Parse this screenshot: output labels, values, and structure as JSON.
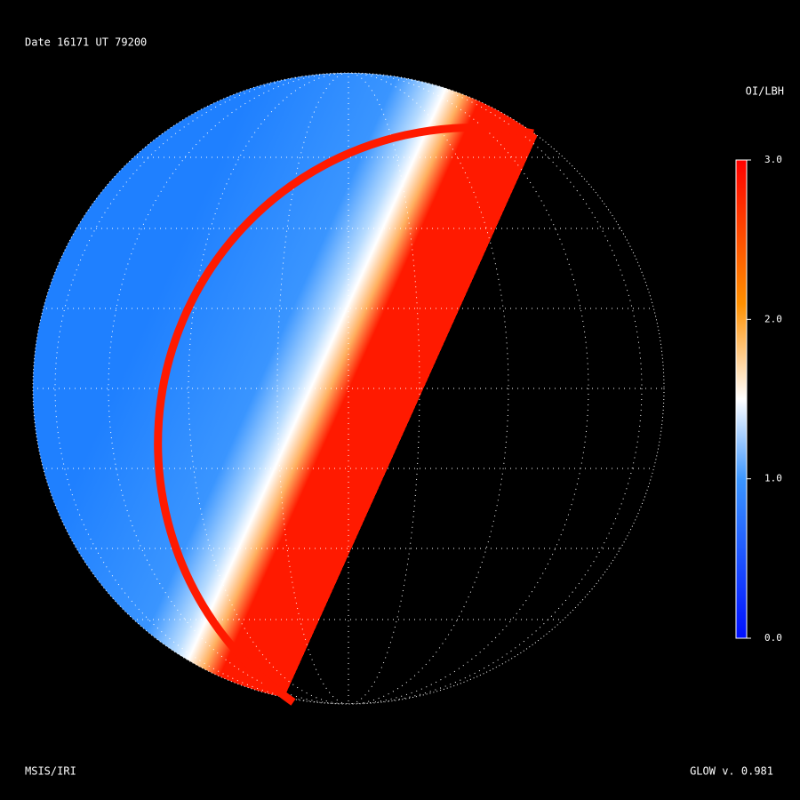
{
  "header": {
    "title": "Date 16171  UT 79200"
  },
  "colorbar": {
    "title": "OI/LBH",
    "range": [
      0,
      3
    ],
    "ticks": [
      {
        "value": 0,
        "label": "0.0"
      },
      {
        "value": 1,
        "label": "1.0"
      },
      {
        "value": 2,
        "label": "2.0"
      },
      {
        "value": 3,
        "label": "3.0"
      }
    ]
  },
  "footer": {
    "left": "MSIS/IRI",
    "right": "GLOW v. 0.981"
  }
}
